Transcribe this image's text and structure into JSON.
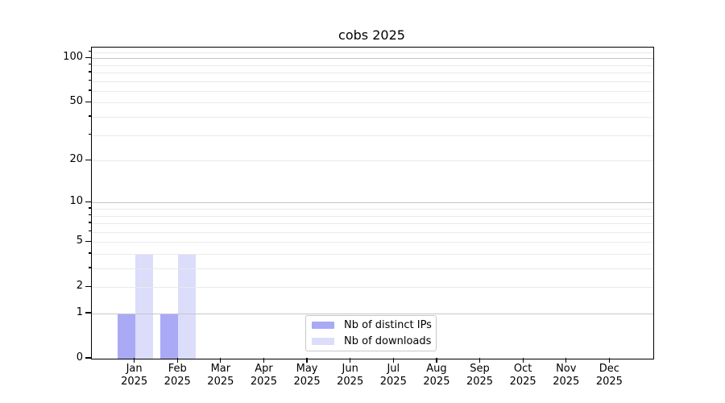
{
  "figure": {
    "title": "cobs 2025"
  },
  "chart_data": {
    "type": "bar",
    "title": "cobs 2025",
    "categories": [
      "Jan",
      "Feb",
      "Mar",
      "Apr",
      "May",
      "Jun",
      "Jul",
      "Aug",
      "Sep",
      "Oct",
      "Nov",
      "Dec"
    ],
    "x_tick_year": "2025",
    "series": [
      {
        "name": "Nb of distinct IPs",
        "color": "#a9a9f6",
        "values": [
          1,
          1,
          0,
          0,
          0,
          0,
          0,
          0,
          0,
          0,
          0,
          0
        ]
      },
      {
        "name": "Nb of downloads",
        "color": "#dcdcfb",
        "values": [
          4,
          4,
          0,
          0,
          0,
          0,
          0,
          0,
          0,
          0,
          0,
          0
        ]
      }
    ],
    "y_axis": {
      "scale": "log1p",
      "major_ticks": [
        0,
        1,
        2,
        5,
        10,
        20,
        50,
        100
      ],
      "decade_gridlines": [
        1,
        10,
        100
      ],
      "minor_gridlines": [
        2,
        3,
        4,
        5,
        6,
        7,
        8,
        9,
        20,
        30,
        40,
        50,
        60,
        70,
        80,
        90,
        110
      ],
      "ylim": [
        0,
        118
      ]
    },
    "xlabel": "",
    "ylabel": "",
    "grid": true,
    "legend_position": "lower center inside"
  },
  "colors": {
    "decade_grid": "#c6c6c6",
    "minor_grid": "#eaeaea",
    "axis": "#000000",
    "text": "#000000",
    "legend_border": "#c8c8c8"
  }
}
